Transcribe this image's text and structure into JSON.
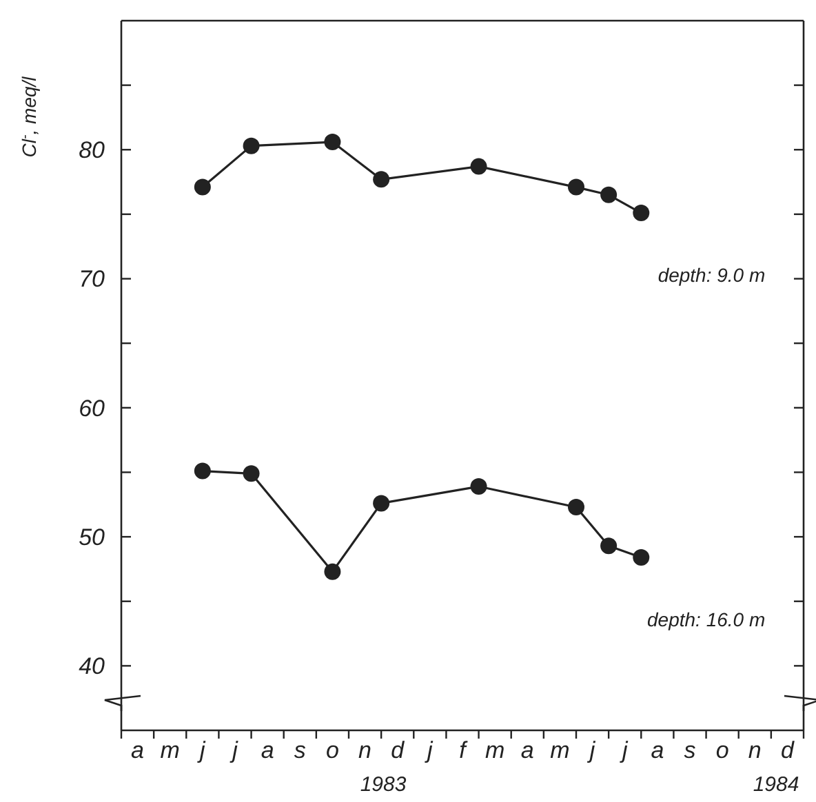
{
  "chart_data": {
    "type": "line",
    "ylabel": "Cl$^{-}$, meq/l",
    "marker": "circle",
    "line_style": "solid",
    "grid": false,
    "categories": [
      null,
      "a",
      null,
      "m",
      null,
      "j",
      null,
      "j",
      null,
      "a",
      null,
      "s",
      null,
      "o",
      null,
      "n",
      null,
      "d",
      null,
      "j",
      null,
      "f",
      null,
      "m",
      null,
      "a",
      null,
      "m",
      null,
      "j",
      null,
      "j",
      null,
      "a",
      null,
      "s",
      null,
      "o",
      null,
      "n",
      null,
      "d",
      null
    ],
    "ylim": [
      35,
      90
    ],
    "yticks": [
      40,
      {
        "value": 45,
        "label": null
      },
      50,
      {
        "value": 55,
        "label": null
      },
      60,
      {
        "value": 65,
        "label": null
      },
      70,
      {
        "value": 75,
        "label": null
      },
      80,
      {
        "value": 85,
        "label": null
      }
    ],
    "annotations": [
      "1983",
      "1984"
    ],
    "series": [
      {
        "name": "depth: 9.0 m",
        "color": "#222222",
        "values": [
          null,
          null,
          null,
          null,
          null,
          77.1,
          null,
          null,
          80.3,
          null,
          null,
          null,
          null,
          80.6,
          null,
          null,
          77.7,
          null,
          null,
          null,
          null,
          null,
          78.7,
          null,
          null,
          null,
          null,
          null,
          77.1,
          null,
          76.5,
          null,
          75.1,
          null,
          null,
          null,
          null,
          null,
          null,
          null,
          null,
          null,
          null
        ]
      },
      {
        "name": "depth: 16.0 m",
        "color": "#222222",
        "values": [
          null,
          null,
          null,
          null,
          null,
          55.1,
          null,
          null,
          54.9,
          null,
          null,
          null,
          null,
          47.3,
          null,
          null,
          52.6,
          null,
          null,
          null,
          null,
          null,
          53.9,
          null,
          null,
          null,
          null,
          null,
          52.3,
          null,
          49.3,
          null,
          48.4,
          null,
          null,
          null,
          null,
          null,
          null,
          null,
          null,
          null,
          null
        ]
      }
    ]
  }
}
